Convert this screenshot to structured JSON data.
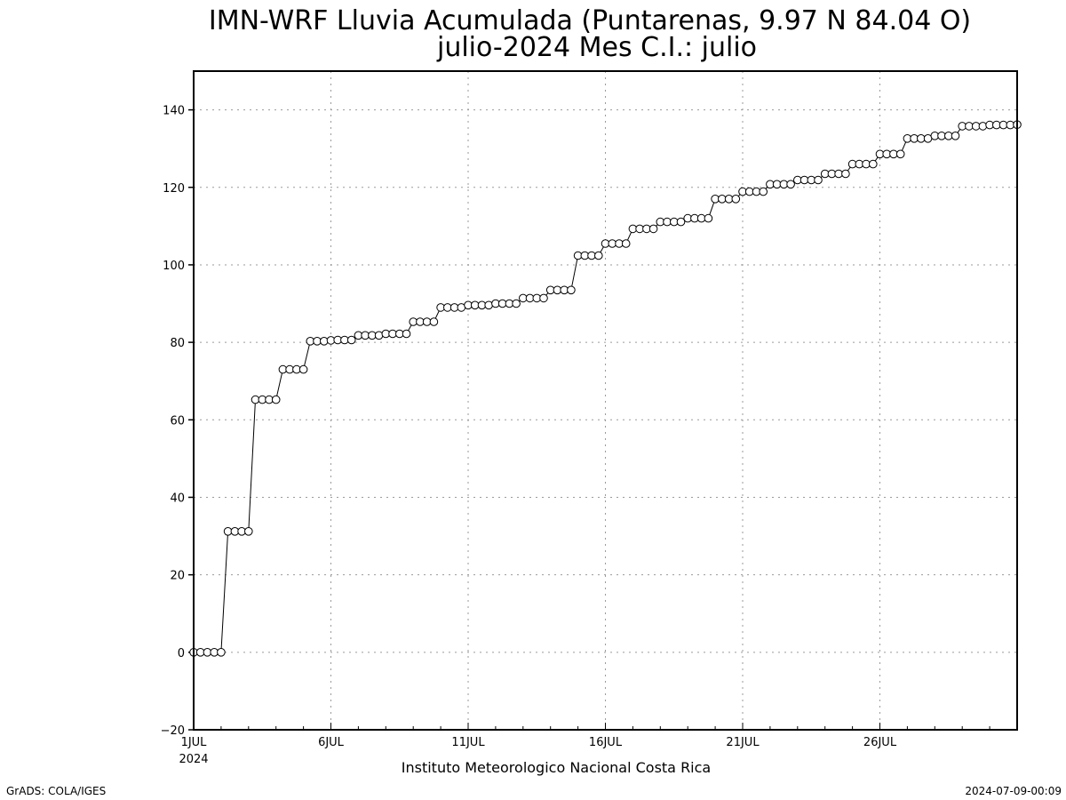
{
  "chart_data": {
    "type": "line",
    "title": "IMN-WRF  Lluvia Acumulada (Puntarenas, 9.97  N 84.04  O)",
    "subtitle": "julio-2024 Mes C.I.: julio",
    "xlabel": "Instituto Meteorologico Nacional Costa Rica",
    "ylabel": "",
    "ylim": [
      -20,
      150
    ],
    "yticks": [
      -20,
      0,
      20,
      40,
      60,
      80,
      100,
      120,
      140
    ],
    "xlim": [
      0,
      30
    ],
    "xtick_days": [
      0,
      5,
      10,
      15,
      20,
      25
    ],
    "xtick_labels": [
      "1JUL",
      "6JUL",
      "11JUL",
      "16JUL",
      "21JUL",
      "26JUL"
    ],
    "xtick_sublabel": "2024",
    "grid": true,
    "series": [
      {
        "x": [
          0,
          0.25,
          0.5,
          0.75,
          1,
          1.25,
          1.5,
          1.75,
          2,
          2.25,
          2.5,
          2.75,
          3,
          3.25,
          3.5,
          3.75,
          4,
          4.25,
          4.5,
          4.75,
          5,
          5.25,
          5.5,
          5.75,
          6,
          6.25,
          6.5,
          6.75,
          7,
          7.25,
          7.5,
          7.75,
          8,
          8.25,
          8.5,
          8.75,
          9,
          9.25,
          9.5,
          9.75,
          10,
          10.25,
          10.5,
          10.75,
          11,
          11.25,
          11.5,
          11.75,
          12,
          12.25,
          12.5,
          12.75,
          13,
          13.25,
          13.5,
          13.75,
          14,
          14.25,
          14.5,
          14.75,
          15,
          15.25,
          15.5,
          15.75,
          16,
          16.25,
          16.5,
          16.75,
          17,
          17.25,
          17.5,
          17.75,
          18,
          18.25,
          18.5,
          18.75,
          19,
          19.25,
          19.5,
          19.75,
          20,
          20.25,
          20.5,
          20.75,
          21,
          21.25,
          21.5,
          21.75,
          22,
          22.25,
          22.5,
          22.75,
          23,
          23.25,
          23.5,
          23.75,
          24,
          24.25,
          24.5,
          24.75,
          25,
          25.25,
          25.5,
          25.75,
          26,
          26.25,
          26.5,
          26.75,
          27,
          27.25,
          27.5,
          27.75,
          28,
          28.25,
          28.5,
          28.75,
          29,
          29.25,
          29.5,
          29.75,
          30
        ],
        "y": [
          0,
          0,
          0,
          0,
          0,
          31.2,
          31.2,
          31.2,
          31.2,
          65.2,
          65.2,
          65.2,
          65.2,
          73,
          73,
          73,
          73,
          80.3,
          80.3,
          80.3,
          80.5,
          80.6,
          80.6,
          80.6,
          81.8,
          81.8,
          81.8,
          81.8,
          82.2,
          82.2,
          82.2,
          82.2,
          85.3,
          85.3,
          85.3,
          85.3,
          89,
          89,
          89,
          89,
          89.6,
          89.6,
          89.6,
          89.6,
          90,
          90,
          90,
          90,
          91.4,
          91.4,
          91.4,
          91.4,
          93.5,
          93.5,
          93.5,
          93.5,
          102.4,
          102.4,
          102.4,
          102.4,
          105.5,
          105.5,
          105.5,
          105.5,
          109.3,
          109.3,
          109.3,
          109.3,
          111.1,
          111.1,
          111.1,
          111.1,
          112,
          112,
          112,
          112,
          117,
          117,
          117,
          117,
          118.9,
          118.9,
          118.9,
          118.9,
          120.8,
          120.8,
          120.8,
          120.8,
          121.9,
          121.9,
          121.9,
          121.9,
          123.5,
          123.5,
          123.5,
          123.5,
          126,
          126,
          126,
          126,
          128.6,
          128.6,
          128.6,
          128.6,
          132.6,
          132.6,
          132.6,
          132.6,
          133.3,
          133.3,
          133.3,
          133.3,
          135.8,
          135.8,
          135.8,
          135.8,
          136.1,
          136.1,
          136.1,
          136.1,
          136.2
        ]
      }
    ]
  },
  "footer": {
    "left": "GrADS: COLA/IGES",
    "right": "2024-07-09-00:09"
  }
}
